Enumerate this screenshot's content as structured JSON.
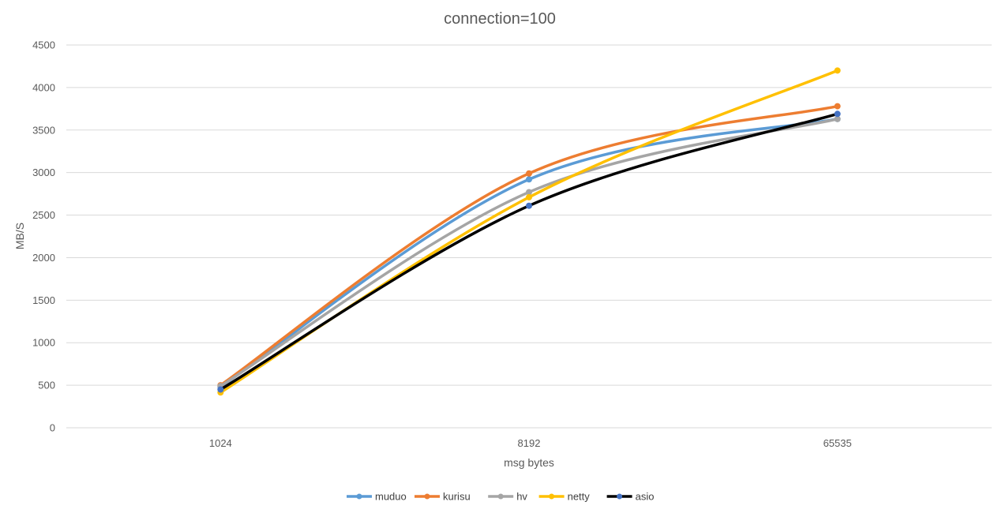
{
  "chart_data": {
    "type": "line",
    "title": "connection=100",
    "xlabel": "msg bytes",
    "ylabel": "MB/S",
    "categories": [
      "1024",
      "8192",
      "65535"
    ],
    "ylim": [
      0,
      4500
    ],
    "yticks": [
      0,
      500,
      1000,
      1500,
      2000,
      2500,
      3000,
      3500,
      4000,
      4500
    ],
    "grid": true,
    "legend_position": "bottom",
    "smooth": true,
    "series": [
      {
        "name": "muduo",
        "color": "#5B9BD5",
        "marker_color": "#5B9BD5",
        "values": [
          480,
          2920,
          3630
        ]
      },
      {
        "name": "kurisu",
        "color": "#ED7D31",
        "marker_color": "#ED7D31",
        "values": [
          500,
          2990,
          3780
        ]
      },
      {
        "name": "hv",
        "color": "#A5A5A5",
        "marker_color": "#A5A5A5",
        "values": [
          490,
          2770,
          3630
        ]
      },
      {
        "name": "netty",
        "color": "#FFC000",
        "marker_color": "#FFC000",
        "values": [
          415,
          2710,
          4200
        ]
      },
      {
        "name": "asio",
        "color": "#000000",
        "marker_color": "#4472C4",
        "values": [
          450,
          2610,
          3690
        ]
      }
    ]
  }
}
